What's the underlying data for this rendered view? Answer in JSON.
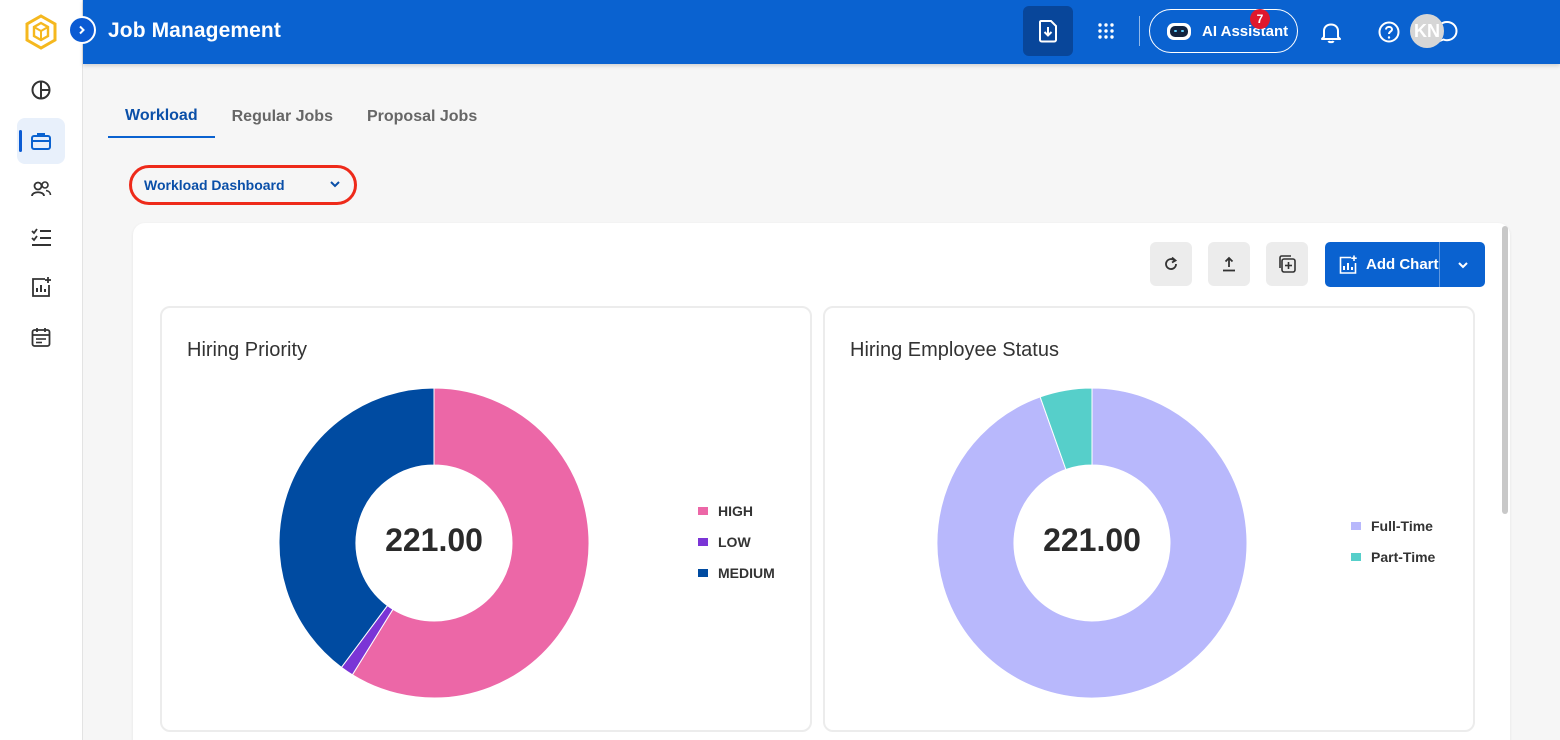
{
  "header": {
    "title": "Job Management",
    "ai_label": "AI Assistant",
    "notification_count": "7",
    "avatar_initials": "KN"
  },
  "tabs": [
    {
      "label": "Workload",
      "active": true
    },
    {
      "label": "Regular Jobs",
      "active": false
    },
    {
      "label": "Proposal Jobs",
      "active": false
    }
  ],
  "dashboard_select": {
    "value": "Workload Dashboard"
  },
  "toolbar": {
    "add_chart_label": "Add Chart"
  },
  "sidebar": {
    "items": [
      {
        "icon": "pie-chart-icon"
      },
      {
        "icon": "briefcase-icon",
        "active": true
      },
      {
        "icon": "people-icon"
      },
      {
        "icon": "checklist-icon"
      },
      {
        "icon": "chart-add-icon"
      },
      {
        "icon": "calendar-icon"
      }
    ]
  },
  "colors": {
    "header": "#0a62d0",
    "high": "#ec67a7",
    "low": "#7b35d6",
    "medium": "#004ba1",
    "full_time": "#b8b8fc",
    "part_time": "#56cfca"
  },
  "chart_data": [
    {
      "type": "pie",
      "title": "Hiring Priority",
      "center_label": "221.00",
      "categories": [
        "HIGH",
        "LOW",
        "MEDIUM"
      ],
      "values": [
        130,
        3,
        88
      ],
      "colors": [
        "#ec67a7",
        "#7b35d6",
        "#004ba1"
      ],
      "legend": "right"
    },
    {
      "type": "pie",
      "title": "Hiring Employee Status",
      "center_label": "221.00",
      "categories": [
        "Full-Time",
        "Part-Time"
      ],
      "values": [
        209,
        12
      ],
      "colors": [
        "#b8b8fc",
        "#56cfca"
      ],
      "legend": "right"
    }
  ]
}
